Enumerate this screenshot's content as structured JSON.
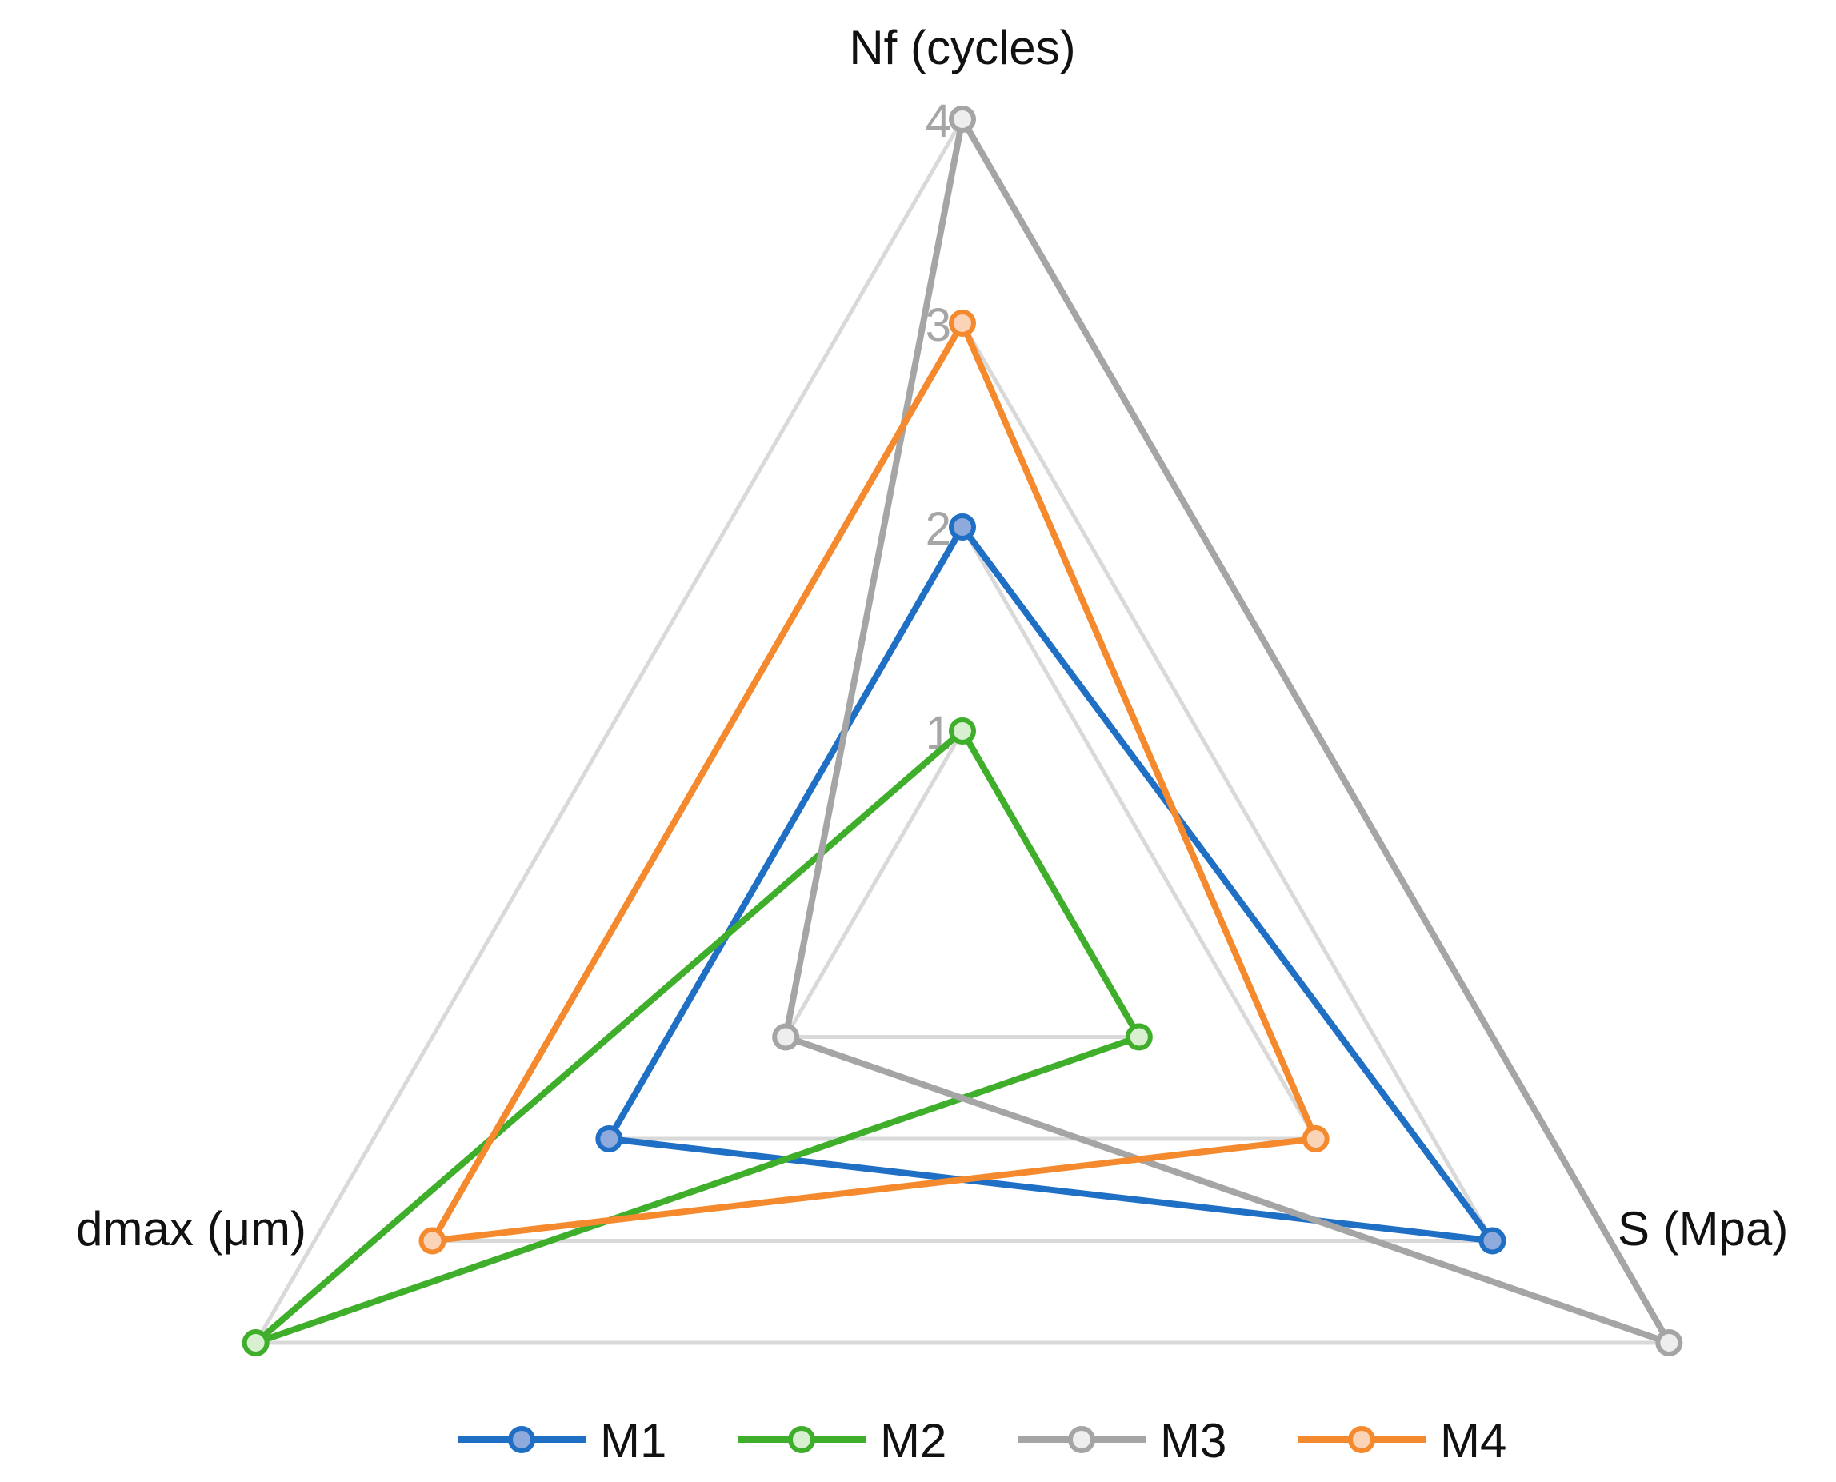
{
  "chart_data": {
    "type": "radar",
    "axes": [
      "Nf (cycles)",
      "S (Mpa)",
      "dmax (μm)"
    ],
    "tick_labels": [
      "1",
      "2",
      "3",
      "4"
    ],
    "range": [
      0,
      4
    ],
    "grid": true,
    "legend_position": "bottom",
    "series": [
      {
        "name": "M1",
        "values": [
          2,
          3,
          2
        ],
        "color": "#1f6fc5",
        "marker_fill": "#8faadc"
      },
      {
        "name": "M2",
        "values": [
          1,
          1,
          4
        ],
        "color": "#3fae2a",
        "marker_fill": "#d8f0d0"
      },
      {
        "name": "M3",
        "values": [
          4,
          4,
          1
        ],
        "color": "#a5a5a5",
        "marker_fill": "#eeeeee"
      },
      {
        "name": "M4",
        "values": [
          3,
          2,
          3
        ],
        "color": "#f5892d",
        "marker_fill": "#fbd3b6"
      }
    ]
  }
}
